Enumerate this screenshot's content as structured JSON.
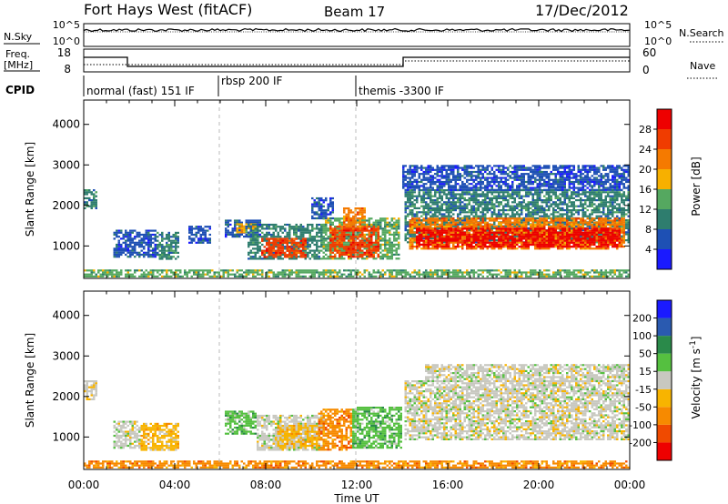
{
  "header": {
    "station": "Fort Hays West (fitACF)",
    "beam": "Beam 17",
    "date": "17/Dec/2012"
  },
  "noise_panel": {
    "left_label": "N.Sky",
    "right_label": "N.Search",
    "left_ticks": [
      "10^5",
      "10^0"
    ],
    "right_ticks": [
      "10^5",
      "10^0"
    ]
  },
  "freq_panel": {
    "left_label_1": "Freq.",
    "left_label_2": "[MHz]",
    "right_label": "Nave",
    "left_ticks": [
      "18",
      "8"
    ],
    "right_ticks": [
      "60",
      "0"
    ]
  },
  "cpid": {
    "label": "CPID",
    "segments": [
      {
        "start_hour": 0,
        "text": "normal (fast) 151 IF"
      },
      {
        "start_hour": 6,
        "text": "rbsp 200 IF"
      },
      {
        "start_hour": 12,
        "text": "themis -3300 IF"
      }
    ]
  },
  "chart_data": [
    {
      "type": "heatmap",
      "title": "",
      "xlabel": "Time UT",
      "ylabel": "Slant Range [km]",
      "xlim": [
        0,
        24
      ],
      "ylim": [
        200,
        4600
      ],
      "x_ticks": [
        "00:00",
        "04:00",
        "08:00",
        "12:00",
        "16:00",
        "20:00",
        "00:00"
      ],
      "y_ticks": [
        "1000",
        "2000",
        "3000",
        "4000"
      ],
      "colorbar": {
        "label": "Power [dB]",
        "levels": [
          "4",
          "8",
          "12",
          "16",
          "20",
          "24",
          "28"
        ],
        "colors": [
          "#1a1aff",
          "#1e50b4",
          "#2e7d6e",
          "#55a860",
          "#f7b000",
          "#f57a00",
          "#f03c00",
          "#ee0000"
        ]
      },
      "regions": [
        {
          "t0": 0.0,
          "t1": 0.55,
          "r0": 1950,
          "r1": 2400,
          "level": 2
        },
        {
          "t0": 1.3,
          "t1": 3.2,
          "r0": 750,
          "r1": 1400,
          "level": 1
        },
        {
          "t0": 3.2,
          "t1": 4.2,
          "r0": 700,
          "r1": 1350,
          "level": 2
        },
        {
          "t0": 4.6,
          "t1": 5.6,
          "r0": 1100,
          "r1": 1500,
          "level": 1
        },
        {
          "t0": 6.2,
          "t1": 7.8,
          "r0": 1250,
          "r1": 1650,
          "level": 1
        },
        {
          "t0": 6.7,
          "t1": 7.7,
          "r0": 1320,
          "r1": 1560,
          "level": 4
        },
        {
          "t0": 7.2,
          "t1": 10.5,
          "r0": 700,
          "r1": 1550,
          "level": 2
        },
        {
          "t0": 7.8,
          "t1": 9.8,
          "r0": 750,
          "r1": 1200,
          "level": 6
        },
        {
          "t0": 10.0,
          "t1": 11.0,
          "r0": 1700,
          "r1": 2200,
          "level": 1
        },
        {
          "t0": 10.5,
          "t1": 13.8,
          "r0": 700,
          "r1": 1700,
          "level": 3
        },
        {
          "t0": 10.8,
          "t1": 13.0,
          "r0": 750,
          "r1": 1500,
          "level": 6
        },
        {
          "t0": 11.4,
          "t1": 12.3,
          "r0": 1500,
          "r1": 1950,
          "level": 5
        },
        {
          "t0": 14.1,
          "t1": 24.0,
          "r0": 1100,
          "r1": 2400,
          "level": 2
        },
        {
          "t0": 14.3,
          "t1": 23.8,
          "r0": 950,
          "r1": 1700,
          "level": 5
        },
        {
          "t0": 14.6,
          "t1": 23.6,
          "r0": 980,
          "r1": 1450,
          "level": 7
        },
        {
          "t0": 14.0,
          "t1": 24.0,
          "r0": 2400,
          "r1": 3000,
          "level": 1
        },
        {
          "t0": 0.0,
          "t1": 24.0,
          "r0": 250,
          "r1": 420,
          "level": 3
        }
      ]
    },
    {
      "type": "heatmap",
      "title": "",
      "xlabel": "Time UT",
      "ylabel": "Slant Range [km]",
      "xlim": [
        0,
        24
      ],
      "ylim": [
        200,
        4600
      ],
      "x_ticks": [
        "00:00",
        "04:00",
        "08:00",
        "12:00",
        "16:00",
        "20:00",
        "00:00"
      ],
      "y_ticks": [
        "1000",
        "2000",
        "3000",
        "4000"
      ],
      "colorbar": {
        "label_1": "Velocity [m s",
        "label_sup": "-1",
        "label_2": "]",
        "levels": [
          "-200",
          "-100",
          "-50",
          "-15",
          "15",
          "50",
          "100",
          "200"
        ],
        "colors": [
          "#ee0000",
          "#f04a00",
          "#f78a00",
          "#f8b400",
          "#c8c8c0",
          "#55c040",
          "#2a8a4a",
          "#2a5ab0",
          "#1a1aff"
        ]
      },
      "regions": [
        {
          "t0": 0.0,
          "t1": 0.55,
          "r0": 1950,
          "r1": 2400,
          "level": 4
        },
        {
          "t0": 1.3,
          "t1": 2.5,
          "r0": 750,
          "r1": 1400,
          "level": 4
        },
        {
          "t0": 2.5,
          "t1": 4.2,
          "r0": 700,
          "r1": 1350,
          "level": 3
        },
        {
          "t0": 6.2,
          "t1": 7.6,
          "r0": 1100,
          "r1": 1650,
          "level": 5
        },
        {
          "t0": 7.6,
          "t1": 10.6,
          "r0": 700,
          "r1": 1550,
          "level": 4
        },
        {
          "t0": 8.5,
          "t1": 10.3,
          "r0": 750,
          "r1": 1300,
          "level": 3
        },
        {
          "t0": 10.3,
          "t1": 11.8,
          "r0": 700,
          "r1": 1700,
          "level": 2
        },
        {
          "t0": 11.8,
          "t1": 13.9,
          "r0": 750,
          "r1": 1750,
          "level": 5
        },
        {
          "t0": 14.1,
          "t1": 24.0,
          "r0": 950,
          "r1": 2400,
          "level": 4
        },
        {
          "t0": 15.0,
          "t1": 24.0,
          "r0": 2400,
          "r1": 2800,
          "level": 4
        },
        {
          "t0": 0.0,
          "t1": 24.0,
          "r0": 250,
          "r1": 420,
          "level": 2
        }
      ]
    }
  ]
}
